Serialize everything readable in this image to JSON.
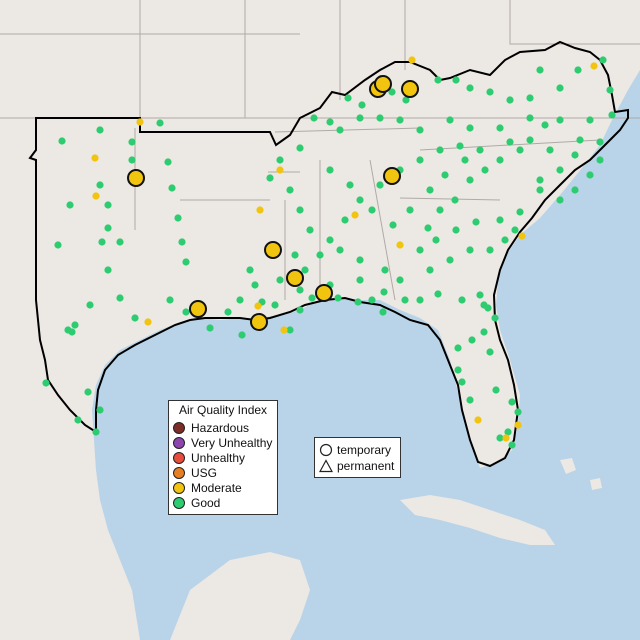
{
  "map": {
    "region": "Southeastern United States",
    "colors": {
      "water": "#b9d3e8",
      "land": "#ece8e3",
      "land_shade": "#dcd6cf",
      "border": "#b0aaa6",
      "highlight_outline": "#000000",
      "Hazardous": "#7b2d26",
      "Very Unhealthy": "#8e44ad",
      "Unhealthy": "#e74c3c",
      "USG": "#e67e22",
      "Moderate": "#f1c40f",
      "Good": "#2ecc71"
    }
  },
  "legend": {
    "title": "Air Quality Index",
    "categories": [
      {
        "label": "Hazardous",
        "color": "#7b2d26"
      },
      {
        "label": "Very Unhealthy",
        "color": "#8e44ad"
      },
      {
        "label": "Unhealthy",
        "color": "#e74c3c"
      },
      {
        "label": "USG",
        "color": "#e67e22"
      },
      {
        "label": "Moderate",
        "color": "#f1c40f"
      },
      {
        "label": "Good",
        "color": "#2ecc71"
      }
    ]
  },
  "site_legend": {
    "temporary_label": "temporary",
    "permanent_label": "permanent",
    "temporary_icon": "circle-icon",
    "permanent_icon": "triangle-icon"
  }
}
